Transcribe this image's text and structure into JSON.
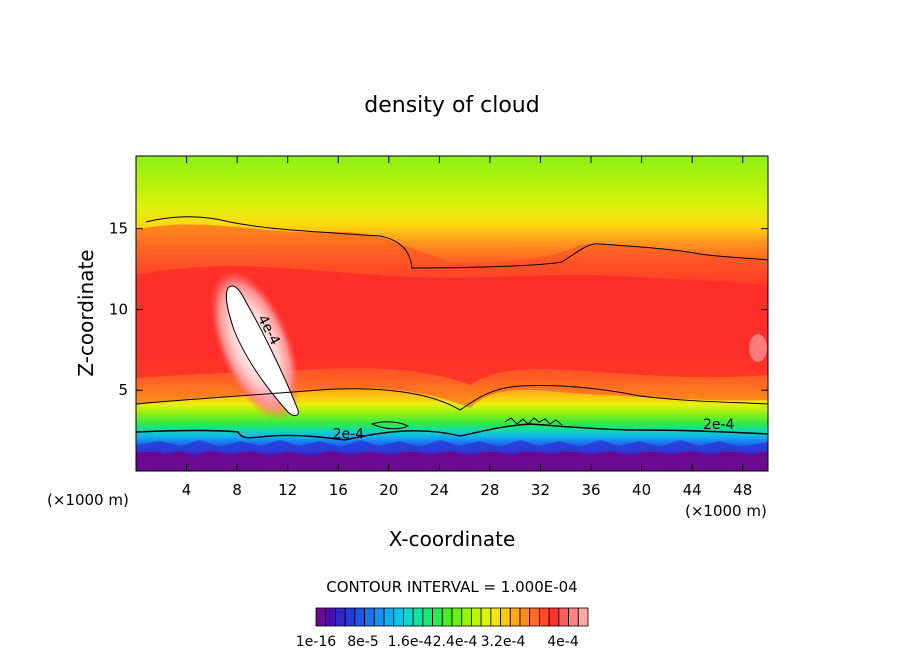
{
  "chart_data": {
    "type": "heatmap",
    "title": "density of cloud",
    "xlabel": "X-coordinate",
    "ylabel": "Z-coordinate",
    "x_unit": "(×1000 m)",
    "x_unit_right": "(×1000 m)",
    "xlim": [
      0,
      50
    ],
    "ylim": [
      0,
      19.5
    ],
    "x_ticks": [
      4,
      8,
      12,
      16,
      20,
      24,
      28,
      32,
      36,
      40,
      44,
      48
    ],
    "y_ticks": [
      5,
      10,
      15
    ],
    "contour_labels": [
      {
        "text": "4e-4",
        "x": 10.2,
        "z": 8.6,
        "rotate": 62
      },
      {
        "text": "2e-4",
        "x": 16.8,
        "z": 2.0,
        "rotate": 0
      },
      {
        "text": "2e-4",
        "x": 46.1,
        "z": 2.6,
        "rotate": 0
      }
    ],
    "contour_interval_text": "CONTOUR INTERVAL = 1.000E-04",
    "colorbar": {
      "tick_labels": [
        "1e-16",
        "8e-5",
        "1.6e-4",
        "2.4e-4",
        "3.2e-4",
        "4e-4"
      ],
      "colors": [
        "#6a0a8f",
        "#4b0fb0",
        "#3324c8",
        "#2a3ad8",
        "#1f55e6",
        "#1b72ee",
        "#1690f0",
        "#10aeef",
        "#10c6e6",
        "#10d8c8",
        "#12e2a0",
        "#18e878",
        "#28ec50",
        "#46ef28",
        "#6ef014",
        "#98f20a",
        "#bcf40a",
        "#dcf20a",
        "#f6e40a",
        "#ffc810",
        "#ffa81a",
        "#ff8a20",
        "#ff6a24",
        "#ff4a26",
        "#ff3030",
        "#ff5a5a",
        "#ff8484",
        "#ffa8a8"
      ]
    }
  }
}
